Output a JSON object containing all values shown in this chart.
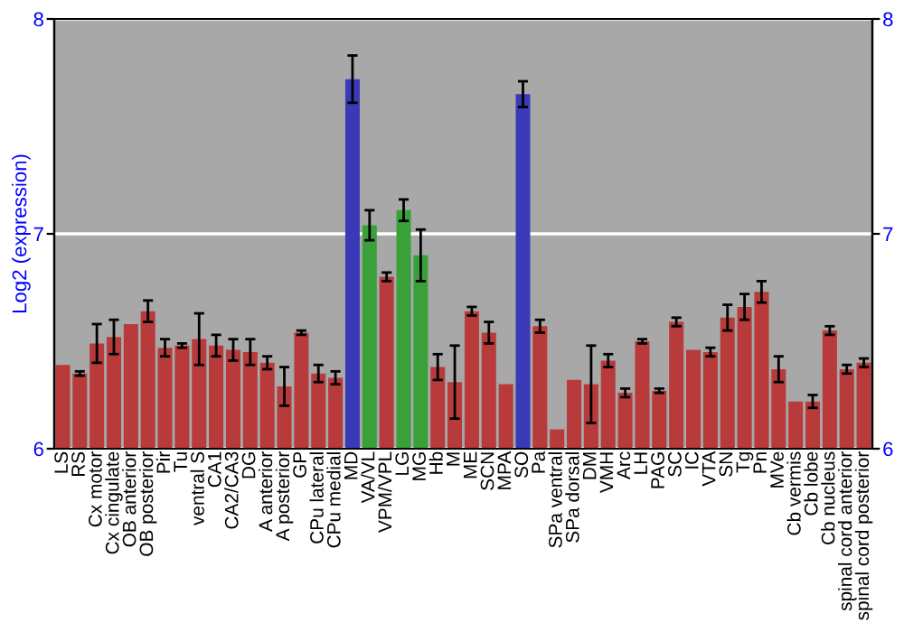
{
  "chart_data": {
    "type": "bar",
    "ylabel": "Log2 (expression)",
    "categories": [
      "LS",
      "RS",
      "Cx motor",
      "Cx cingulate",
      "OB anterior",
      "OB posterior",
      "Pir",
      "Tu",
      "ventral S",
      "CA1",
      "CA2/CA3",
      "DG",
      "A anterior",
      "A posterior",
      "GP",
      "CPu lateral",
      "CPu medial",
      "MD",
      "VA/VL",
      "VPM/VPL",
      "LG",
      "MG",
      "Hb",
      "M",
      "ME",
      "SCN",
      "MPA",
      "SO",
      "Pa",
      "SPa ventral",
      "SPa dorsal",
      "DM",
      "VMH",
      "Arc",
      "LH",
      "PAG",
      "SC",
      "IC",
      "VTA",
      "SN",
      "Tg",
      "Pn",
      "MVe",
      "Cb vermis",
      "Cb lobe",
      "Cb nucleus",
      "spinal cord anterior",
      "spinal cord posterior"
    ],
    "values": [
      6.39,
      6.35,
      6.49,
      6.52,
      6.58,
      6.64,
      6.47,
      6.48,
      6.51,
      6.48,
      6.46,
      6.45,
      6.4,
      6.29,
      6.54,
      6.35,
      6.33,
      7.72,
      7.04,
      6.8,
      7.11,
      6.9,
      6.38,
      6.31,
      6.64,
      6.54,
      6.3,
      7.65,
      6.57,
      6.09,
      6.32,
      6.3,
      6.41,
      6.26,
      6.5,
      6.27,
      6.59,
      6.46,
      6.45,
      6.61,
      6.66,
      6.73,
      6.37,
      6.22,
      6.22,
      6.55,
      6.37,
      6.4
    ],
    "errors": [
      null,
      0.01,
      0.09,
      0.08,
      null,
      0.05,
      0.04,
      0.01,
      0.12,
      0.05,
      0.05,
      0.06,
      0.03,
      0.09,
      0.01,
      0.04,
      0.03,
      0.11,
      0.07,
      0.02,
      0.05,
      0.12,
      0.06,
      0.17,
      0.02,
      0.05,
      null,
      0.06,
      0.03,
      null,
      null,
      0.18,
      0.03,
      0.02,
      0.01,
      0.01,
      0.02,
      null,
      0.02,
      0.06,
      0.06,
      0.05,
      0.06,
      null,
      0.03,
      0.02,
      0.02,
      0.02
    ],
    "colors": [
      "#b83a3a",
      "#b83a3a",
      "#b83a3a",
      "#b83a3a",
      "#b83a3a",
      "#b83a3a",
      "#b83a3a",
      "#b83a3a",
      "#b83a3a",
      "#b83a3a",
      "#b83a3a",
      "#b83a3a",
      "#b83a3a",
      "#b83a3a",
      "#b83a3a",
      "#b83a3a",
      "#b83a3a",
      "#3a3ab8",
      "#3aa03a",
      "#b83a3a",
      "#3aa03a",
      "#3aa03a",
      "#b83a3a",
      "#b83a3a",
      "#b83a3a",
      "#b83a3a",
      "#b83a3a",
      "#3a3ab8",
      "#b83a3a",
      "#b83a3a",
      "#b83a3a",
      "#b83a3a",
      "#b83a3a",
      "#b83a3a",
      "#b83a3a",
      "#b83a3a",
      "#b83a3a",
      "#b83a3a",
      "#b83a3a",
      "#b83a3a",
      "#b83a3a",
      "#b83a3a",
      "#b83a3a",
      "#b83a3a",
      "#b83a3a",
      "#b83a3a",
      "#b83a3a",
      "#b83a3a"
    ],
    "ylim": [
      6,
      8
    ],
    "yticks": [
      6,
      7,
      8
    ],
    "y2lim": [
      6,
      8
    ],
    "y2ticks": [
      6,
      7,
      8
    ],
    "grid": "y"
  }
}
